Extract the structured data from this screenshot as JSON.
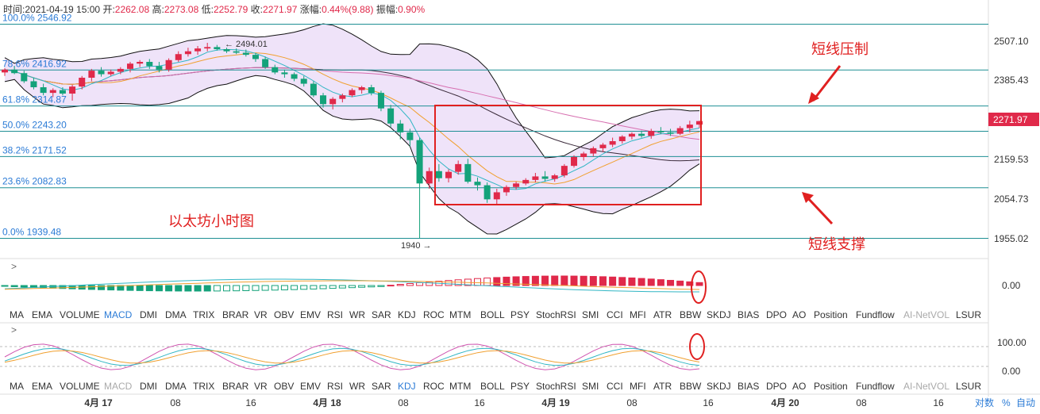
{
  "info_bar": {
    "time_label": "时间:",
    "time": "2021-04-19 15:00",
    "open_label": "开:",
    "open": "2262.08",
    "high_label": "高:",
    "high": "2273.08",
    "low_label": "低:",
    "low": "2252.79",
    "close_label": "收:",
    "close": "2271.97",
    "change_label": "涨幅:",
    "change": "0.44%(9.88)",
    "amp_label": "振幅:",
    "amp": "0.90%"
  },
  "fib_levels": [
    {
      "label": "100.0% 2546.92",
      "value": 2546.92
    },
    {
      "label": "78.6% 2416.92",
      "value": 2416.92
    },
    {
      "label": "61.8% 2314.87",
      "value": 2314.87
    },
    {
      "label": "50.0% 2243.20",
      "value": 2243.2
    },
    {
      "label": "38.2% 2171.52",
      "value": 2171.52
    },
    {
      "label": "23.6% 2082.83",
      "value": 2082.83
    },
    {
      "label": "0.0% 1939.48",
      "value": 1939.48
    }
  ],
  "annotations": {
    "pressure": "短线压制",
    "support": "短线支撑",
    "title": "以太坊小时图",
    "high_mark": "2494.01",
    "low_mark": "1940"
  },
  "price_axis": {
    "ticks": [
      "2507.10",
      "2385.43",
      "2159.53",
      "2054.73",
      "1955.02"
    ],
    "current": "2271.97"
  },
  "sub_axis": {
    "macd_zero": "0.00",
    "kdj_ticks": [
      "100.00",
      "0.00"
    ]
  },
  "indicator_tabs_1": [
    "MA",
    "EMA",
    "VOLUME",
    "MACD",
    "DMI",
    "DMA",
    "TRIX",
    "BRAR",
    "VR",
    "OBV",
    "EMV",
    "RSI",
    "WR",
    "SAR",
    "KDJ",
    "ROC",
    "MTM",
    "BOLL",
    "PSY",
    "StochRSI",
    "SMI",
    "CCI",
    "MFI",
    "ATR",
    "BBW",
    "SKDJ",
    "BIAS",
    "DPO",
    "AO",
    "Position",
    "Fundflow",
    "AI-NetVOL",
    "LSUR"
  ],
  "indicator_tabs_2": [
    "MA",
    "EMA",
    "VOLUME",
    "MACD",
    "DMI",
    "DMA",
    "TRIX",
    "BRAR",
    "VR",
    "OBV",
    "EMV",
    "RSI",
    "WR",
    "SAR",
    "KDJ",
    "ROC",
    "MTM",
    "BOLL",
    "PSY",
    "StochRSI",
    "SMI",
    "CCI",
    "MFI",
    "ATR",
    "BBW",
    "SKDJ",
    "BIAS",
    "DPO",
    "AO",
    "Position",
    "Fundflow",
    "AI-NetVOL",
    "LSUR"
  ],
  "time_axis": [
    "4月 17",
    "08",
    "16",
    "4月 18",
    "08",
    "16",
    "4月 19",
    "08",
    "16",
    "4月 20",
    "08",
    "16"
  ],
  "footer_controls": {
    "log": "对数",
    "percent": "%",
    "auto": "自动"
  },
  "colors": {
    "up": "#e0294a",
    "down": "#14a27a",
    "band_fill": "#ead9f7",
    "fib_line": "#1f8f94",
    "box": "#e02020",
    "arrow": "#e02020",
    "current_price_bg": "#e0294a"
  },
  "chart_data": {
    "type": "candlestick",
    "y_range": [
      1900,
      2575
    ],
    "candles": [
      [
        2410,
        2422,
        2400,
        2418
      ],
      [
        2418,
        2428,
        2405,
        2408
      ],
      [
        2408,
        2415,
        2380,
        2385
      ],
      [
        2385,
        2395,
        2362,
        2368
      ],
      [
        2368,
        2378,
        2345,
        2352
      ],
      [
        2352,
        2365,
        2340,
        2360
      ],
      [
        2360,
        2368,
        2345,
        2350
      ],
      [
        2350,
        2375,
        2330,
        2370
      ],
      [
        2370,
        2400,
        2362,
        2395
      ],
      [
        2395,
        2420,
        2385,
        2415
      ],
      [
        2415,
        2425,
        2398,
        2405
      ],
      [
        2405,
        2418,
        2400,
        2412
      ],
      [
        2412,
        2425,
        2405,
        2420
      ],
      [
        2420,
        2440,
        2410,
        2435
      ],
      [
        2435,
        2445,
        2425,
        2440
      ],
      [
        2440,
        2448,
        2420,
        2428
      ],
      [
        2428,
        2440,
        2410,
        2418
      ],
      [
        2418,
        2450,
        2412,
        2445
      ],
      [
        2445,
        2470,
        2440,
        2462
      ],
      [
        2462,
        2480,
        2455,
        2470
      ],
      [
        2470,
        2485,
        2460,
        2478
      ],
      [
        2478,
        2494,
        2470,
        2482
      ],
      [
        2482,
        2488,
        2472,
        2476
      ],
      [
        2476,
        2480,
        2465,
        2470
      ],
      [
        2470,
        2478,
        2462,
        2466
      ],
      [
        2466,
        2475,
        2455,
        2460
      ],
      [
        2460,
        2465,
        2440,
        2448
      ],
      [
        2448,
        2455,
        2420,
        2425
      ],
      [
        2425,
        2432,
        2405,
        2410
      ],
      [
        2410,
        2418,
        2395,
        2405
      ],
      [
        2405,
        2410,
        2385,
        2392
      ],
      [
        2392,
        2400,
        2370,
        2378
      ],
      [
        2378,
        2385,
        2340,
        2345
      ],
      [
        2345,
        2352,
        2310,
        2320
      ],
      [
        2320,
        2340,
        2305,
        2335
      ],
      [
        2335,
        2350,
        2325,
        2345
      ],
      [
        2345,
        2365,
        2340,
        2360
      ],
      [
        2360,
        2372,
        2350,
        2368
      ],
      [
        2368,
        2375,
        2345,
        2352
      ],
      [
        2352,
        2358,
        2300,
        2308
      ],
      [
        2308,
        2318,
        2255,
        2265
      ],
      [
        2265,
        2275,
        2220,
        2240
      ],
      [
        2240,
        2250,
        2200,
        2218
      ],
      [
        2218,
        2225,
        1940,
        2095
      ],
      [
        2095,
        2140,
        2080,
        2130
      ],
      [
        2130,
        2150,
        2100,
        2110
      ],
      [
        2110,
        2135,
        2098,
        2128
      ],
      [
        2128,
        2160,
        2120,
        2150
      ],
      [
        2150,
        2165,
        2095,
        2100
      ],
      [
        2100,
        2112,
        2075,
        2090
      ],
      [
        2090,
        2098,
        2040,
        2050
      ],
      [
        2050,
        2080,
        2036,
        2070
      ],
      [
        2070,
        2090,
        2060,
        2085
      ],
      [
        2085,
        2100,
        2078,
        2095
      ],
      [
        2095,
        2110,
        2090,
        2105
      ],
      [
        2105,
        2125,
        2098,
        2115
      ],
      [
        2115,
        2130,
        2100,
        2108
      ],
      [
        2108,
        2122,
        2100,
        2118
      ],
      [
        2118,
        2150,
        2112,
        2145
      ],
      [
        2145,
        2175,
        2140,
        2170
      ],
      [
        2170,
        2185,
        2160,
        2180
      ],
      [
        2180,
        2200,
        2172,
        2195
      ],
      [
        2195,
        2210,
        2185,
        2205
      ],
      [
        2205,
        2225,
        2198,
        2215
      ],
      [
        2215,
        2232,
        2208,
        2228
      ],
      [
        2228,
        2240,
        2220,
        2236
      ],
      [
        2236,
        2245,
        2225,
        2230
      ],
      [
        2230,
        2250,
        2222,
        2244
      ],
      [
        2244,
        2255,
        2235,
        2240
      ],
      [
        2240,
        2250,
        2230,
        2236
      ],
      [
        2236,
        2258,
        2232,
        2252
      ],
      [
        2252,
        2273,
        2240,
        2262
      ],
      [
        2262,
        2273,
        2252,
        2272
      ]
    ]
  }
}
